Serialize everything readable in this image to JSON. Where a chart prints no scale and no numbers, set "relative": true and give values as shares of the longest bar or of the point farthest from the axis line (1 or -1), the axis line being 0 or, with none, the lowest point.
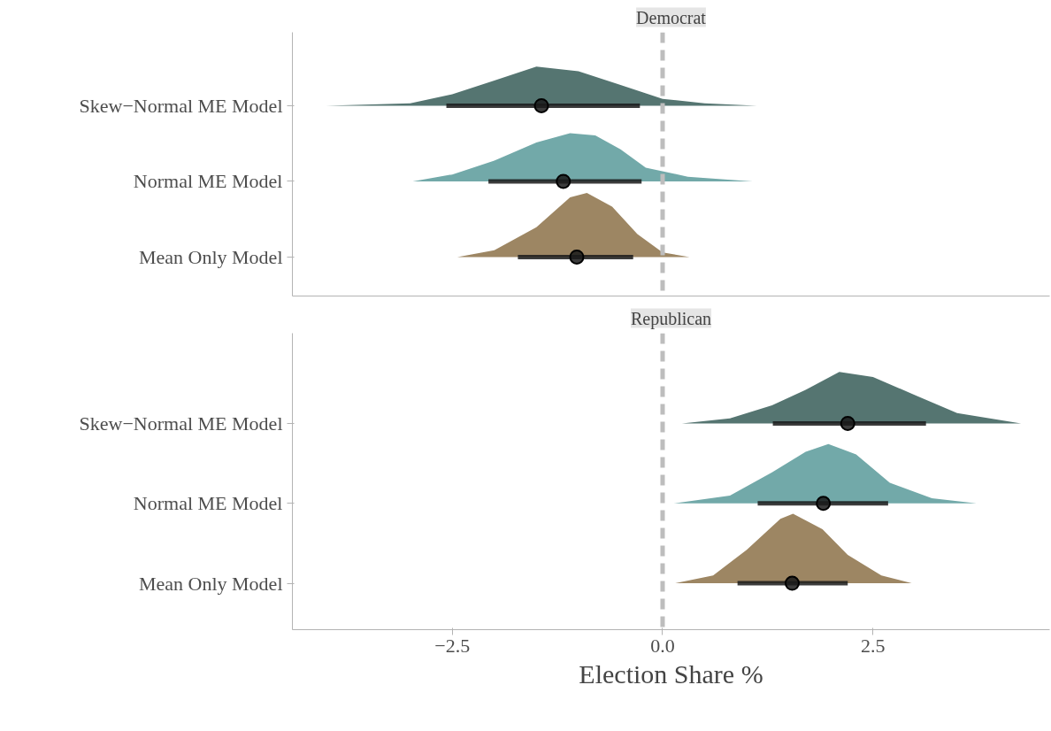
{
  "chart_data": [
    {
      "type": "scatter",
      "title": "Democrat",
      "tick_labels": false,
      "grid": false,
      "relative": true,
      "annotations": [
        "Skew−Normal ME Model",
        "Normal ME Model",
        "Mean Only Model"
      ],
      "xlim": [
        -4.4,
        4.6
      ],
      "xticks": [
        {
          "value": -2.5,
          "label": null
        },
        {
          "value": 0,
          "label": null
        },
        {
          "value": 2.5,
          "label": null
        }
      ],
      "ref_lines": [
        {
          "axis": "x",
          "value": 0,
          "color": "#bdbdbd",
          "line_style": "dashed"
        }
      ],
      "series": [
        {
          "type": "area",
          "color": "#557571",
          "x": [
            -4.0,
            -3.0,
            -2.5,
            -2.0,
            -1.5,
            -1.0,
            -0.5,
            0.0,
            0.5,
            1.12
          ],
          "values": [
            0.83,
            0.84,
            0.88,
            0.94,
            1.0,
            0.98,
            0.92,
            0.86,
            0.84,
            0.83
          ]
        },
        {
          "type": "area",
          "color": "#72a9a9",
          "x": [
            -2.97,
            -2.5,
            -2.0,
            -1.5,
            -1.1,
            -0.8,
            -0.5,
            -0.2,
            0.3,
            1.07
          ],
          "values": [
            0.5,
            0.53,
            0.59,
            0.67,
            0.71,
            0.7,
            0.64,
            0.56,
            0.52,
            0.5
          ]
        },
        {
          "type": "area",
          "color": "#9d8663",
          "x": [
            -2.44,
            -2.0,
            -1.5,
            -1.1,
            -0.9,
            -0.6,
            -0.3,
            0.0,
            0.32
          ],
          "values": [
            0.17,
            0.2,
            0.3,
            0.43,
            0.45,
            0.39,
            0.27,
            0.19,
            0.17
          ]
        },
        {
          "color": "#1a1a1a",
          "x": [
            -1.44,
            -1.18,
            -1.02
          ],
          "values": [
            0.83,
            0.5,
            0.17
          ],
          "xerrors": [
            [
              -2.57,
              -0.27
            ],
            [
              -2.07,
              -0.25
            ],
            [
              -1.72,
              -0.35
            ]
          ]
        }
      ]
    },
    {
      "type": "scatter",
      "title": "Republican",
      "tick_labels": "x",
      "grid": false,
      "relative": true,
      "xlabel": "Election Share %",
      "annotations": [
        "Skew−Normal ME Model",
        "Normal ME Model",
        "Mean Only Model"
      ],
      "xlim": [
        -4.4,
        4.6
      ],
      "xticks": [
        {
          "value": -2.5,
          "label": "−2.5"
        },
        {
          "value": 0,
          "label": "0.0"
        },
        {
          "value": 2.5,
          "label": "2.5"
        }
      ],
      "ref_lines": [
        {
          "axis": "x",
          "value": 0,
          "color": "#bdbdbd",
          "line_style": "dashed"
        }
      ],
      "series": [
        {
          "type": "area",
          "color": "#557571",
          "x": [
            0.23,
            0.8,
            1.3,
            1.7,
            2.1,
            2.5,
            3.0,
            3.5,
            4.26
          ],
          "values": [
            0.8,
            0.82,
            0.87,
            0.93,
            1.0,
            0.98,
            0.91,
            0.84,
            0.8
          ]
        },
        {
          "type": "area",
          "color": "#72a9a9",
          "x": [
            0.13,
            0.8,
            1.3,
            1.7,
            1.97,
            2.3,
            2.7,
            3.2,
            3.73
          ],
          "values": [
            0.49,
            0.52,
            0.61,
            0.69,
            0.72,
            0.68,
            0.57,
            0.51,
            0.49
          ]
        },
        {
          "type": "area",
          "color": "#9d8663",
          "x": [
            0.15,
            0.6,
            1.0,
            1.4,
            1.55,
            1.9,
            2.2,
            2.6,
            2.96
          ],
          "values": [
            0.18,
            0.21,
            0.31,
            0.43,
            0.45,
            0.39,
            0.29,
            0.21,
            0.18
          ]
        },
        {
          "color": "#1a1a1a",
          "x": [
            2.2,
            1.91,
            1.54
          ],
          "values": [
            0.8,
            0.49,
            0.18
          ],
          "xerrors": [
            [
              1.31,
              3.13
            ],
            [
              1.13,
              2.68
            ],
            [
              0.89,
              2.2
            ]
          ]
        }
      ]
    }
  ]
}
